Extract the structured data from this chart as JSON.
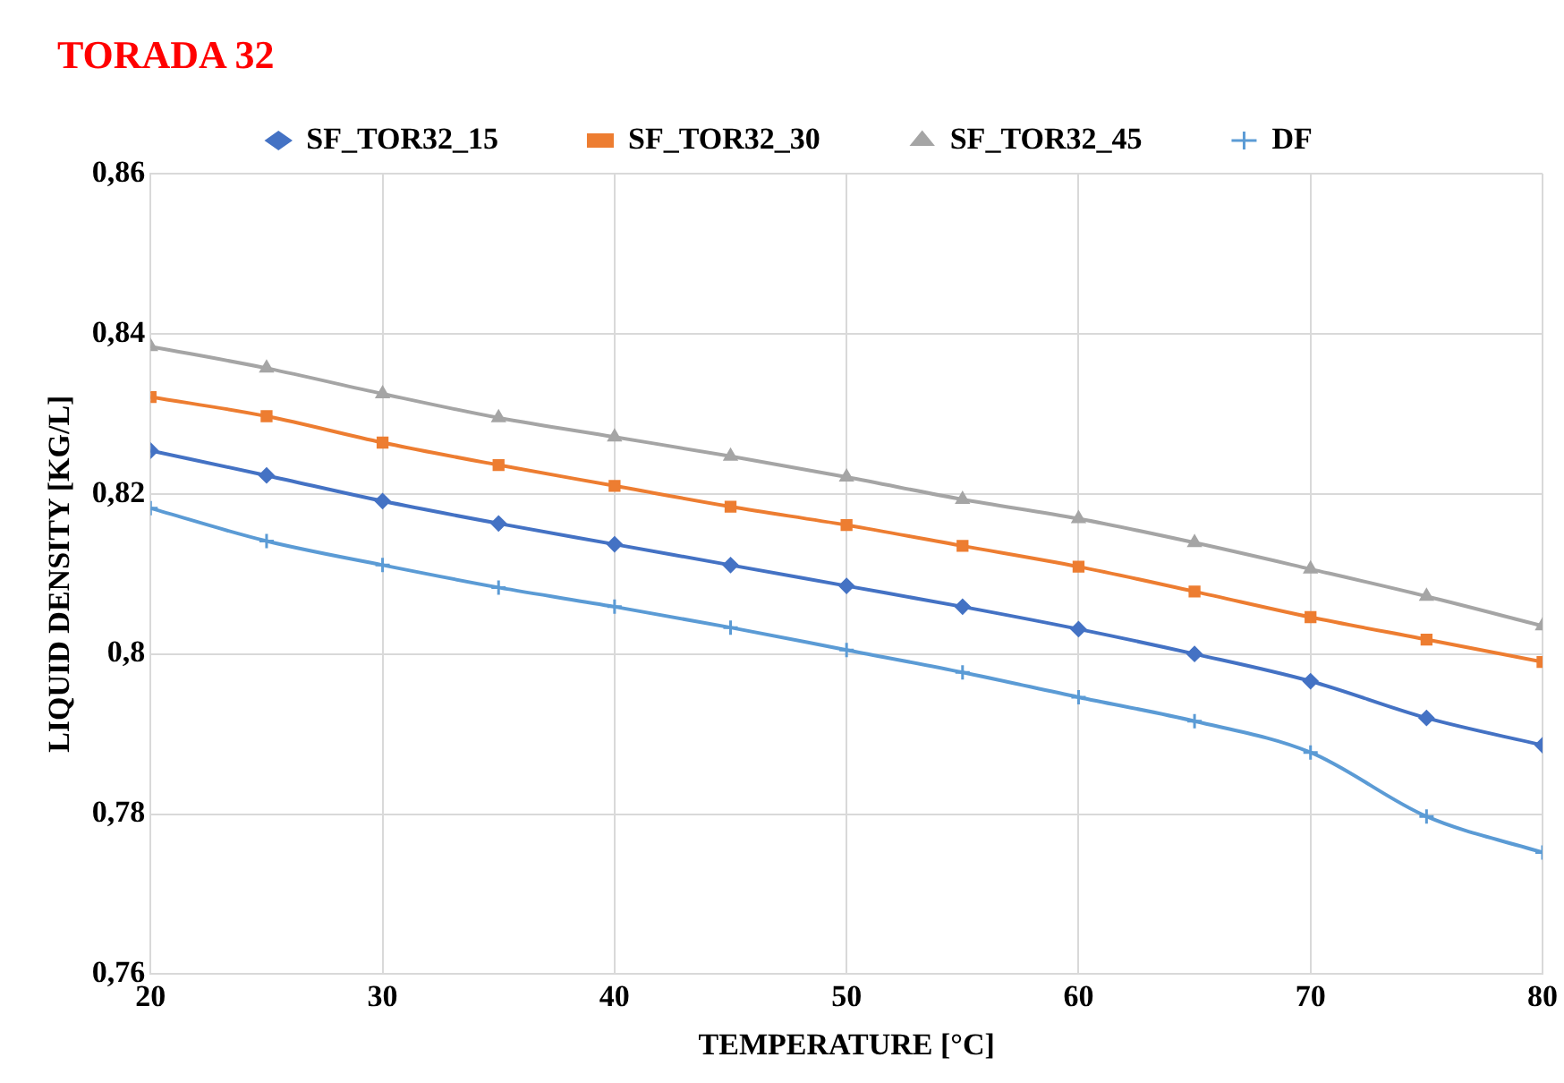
{
  "chart_data": {
    "type": "line",
    "title": "TORADA 32",
    "xlabel": "TEMPERATURE [°C]",
    "ylabel": "LIQUID DENSITY [KG/L]",
    "x": [
      20,
      25,
      30,
      35,
      40,
      45,
      50,
      55,
      60,
      65,
      70,
      75,
      80
    ],
    "series": [
      {
        "name": "SF_TOR32_15",
        "color": "#4472c4",
        "marker": "diamond",
        "values": [
          0.8254,
          0.8223,
          0.8191,
          0.8163,
          0.8137,
          0.8111,
          0.8085,
          0.8059,
          0.8031,
          0.8,
          0.7966,
          0.792,
          0.7886
        ]
      },
      {
        "name": "SF_TOR32_30",
        "color": "#ed7d31",
        "marker": "square",
        "values": [
          0.8321,
          0.8297,
          0.8264,
          0.8236,
          0.821,
          0.8184,
          0.8161,
          0.8135,
          0.8109,
          0.8078,
          0.8046,
          0.8018,
          0.799
        ]
      },
      {
        "name": "SF_TOR32_45",
        "color": "#a5a5a5",
        "marker": "triangle",
        "values": [
          0.8384,
          0.8357,
          0.8325,
          0.8295,
          0.8271,
          0.8247,
          0.8221,
          0.8193,
          0.8169,
          0.8139,
          0.8106,
          0.8072,
          0.8035
        ]
      },
      {
        "name": "DF",
        "color": "#5b9bd5",
        "marker": "cross",
        "values": [
          0.8182,
          0.8141,
          0.8111,
          0.8083,
          0.8059,
          0.8033,
          0.8005,
          0.7977,
          0.7946,
          0.7916,
          0.7877,
          0.7797,
          0.7752
        ]
      }
    ],
    "xlim": [
      20,
      80
    ],
    "xticks": [
      20,
      30,
      40,
      50,
      60,
      70,
      80
    ],
    "ylim": [
      0.76,
      0.86
    ],
    "yticks": [
      {
        "value": 0.76,
        "label": "0,76"
      },
      {
        "value": 0.78,
        "label": "0,78"
      },
      {
        "value": 0.8,
        "label": "0,8"
      },
      {
        "value": 0.82,
        "label": "0,82"
      },
      {
        "value": 0.84,
        "label": "0,84"
      },
      {
        "value": 0.86,
        "label": "0,86"
      }
    ],
    "grid": true,
    "legend": "top",
    "line_style": "solid"
  }
}
